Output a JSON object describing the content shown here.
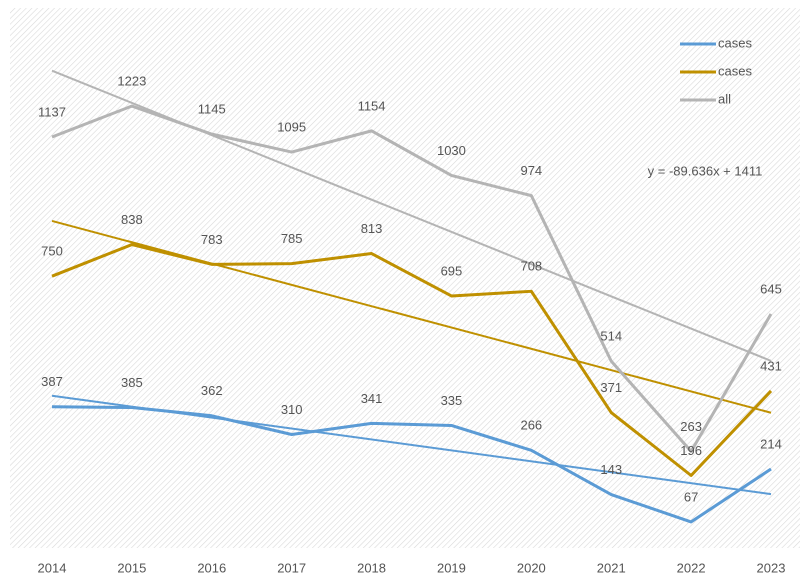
{
  "chart_data": {
    "type": "line",
    "categories": [
      "2014",
      "2015",
      "2016",
      "2017",
      "2018",
      "2019",
      "2020",
      "2021",
      "2022",
      "2023"
    ],
    "series": [
      {
        "name": "cases",
        "color": "#5b9bd5",
        "values": [
          387,
          385,
          362,
          310,
          341,
          335,
          266,
          143,
          67,
          214
        ]
      },
      {
        "name": "cases",
        "color": "#bf9000",
        "values": [
          750,
          838,
          783,
          785,
          813,
          695,
          708,
          371,
          196,
          431
        ]
      },
      {
        "name": "all",
        "color": "#b4b4b4",
        "values": [
          1137,
          1223,
          1145,
          1095,
          1154,
          1030,
          974,
          514,
          263,
          645
        ]
      }
    ],
    "trendline": true,
    "annotation": "y = -89.636x + 1411",
    "ylim": [
      0,
      1490
    ],
    "legend": "top-right"
  }
}
